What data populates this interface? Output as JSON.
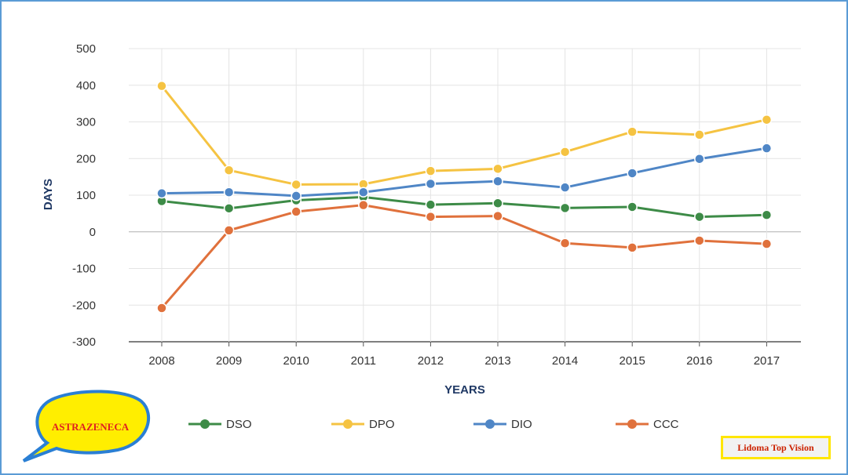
{
  "chart_data": {
    "type": "line",
    "categories": [
      "2008",
      "2009",
      "2010",
      "2011",
      "2012",
      "2013",
      "2014",
      "2015",
      "2016",
      "2017"
    ],
    "series": [
      {
        "name": "DSO",
        "color": "#3d8b47",
        "values": [
          84,
          64,
          86,
          95,
          74,
          78,
          65,
          68,
          41,
          46
        ]
      },
      {
        "name": "DPO",
        "color": "#f5c342",
        "values": [
          398,
          168,
          129,
          130,
          166,
          172,
          218,
          273,
          265,
          306
        ]
      },
      {
        "name": "DIO",
        "color": "#4f86c6",
        "values": [
          105,
          108,
          98,
          108,
          131,
          138,
          121,
          160,
          199,
          228
        ]
      },
      {
        "name": "CCC",
        "color": "#e0713c",
        "values": [
          -208,
          4,
          55,
          73,
          41,
          43,
          -31,
          -43,
          -24,
          -33
        ]
      }
    ],
    "ylim": [
      -300,
      500
    ],
    "yticks": [
      "500",
      "400",
      "300",
      "200",
      "100",
      "0",
      "-100",
      "-200",
      "-300"
    ],
    "ytick_values": [
      500,
      400,
      300,
      200,
      100,
      0,
      -100,
      -200,
      -300
    ],
    "xlabel": "YEARS",
    "ylabel": "DAYS",
    "grid": true,
    "legend_position": "bottom"
  },
  "callout": {
    "text": "ASTRAZENECA",
    "fill": "#ffee00",
    "border": "#2a7fd4",
    "text_color": "#e02020"
  },
  "badge": {
    "text": "Lidoma Top Vision"
  }
}
